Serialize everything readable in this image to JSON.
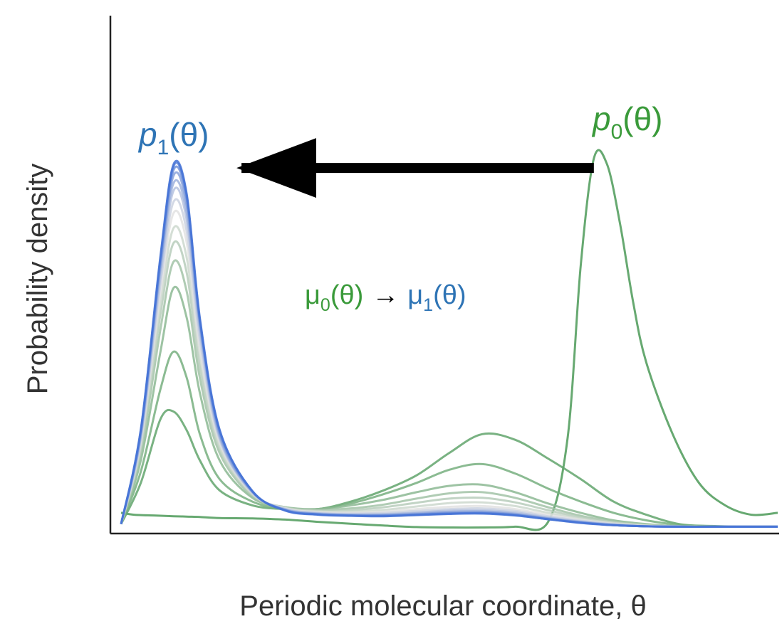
{
  "chart_data": {
    "type": "line",
    "xlabel": "Periodic molecular coordinate, θ",
    "ylabel": "Probability density",
    "xlim": [
      0,
      1
    ],
    "ylim": [
      0,
      1
    ],
    "grid": false,
    "legend": "none",
    "annotations": {
      "p1": {
        "base": "p",
        "sub": "1",
        "tail": "(θ)",
        "color": "#2e74b5"
      },
      "p0": {
        "base": "p",
        "sub": "0",
        "tail": "(θ)",
        "color": "#3a9a3a"
      },
      "mu_left": {
        "base": "μ",
        "sub": "0",
        "tail": "(θ)",
        "color": "#3a9a3a"
      },
      "mu_arrow": "→",
      "mu_right": {
        "base": "μ",
        "sub": "1",
        "tail": "(θ)",
        "color": "#2e74b5"
      }
    },
    "arrow": {
      "from_x": 0.72,
      "to_x": 0.14,
      "y": 0.96
    },
    "colors": {
      "start": "#4c9a58",
      "mid": "#e2e2e2",
      "end": "#4472d6",
      "arrow": "#000000",
      "axis": "#222222"
    },
    "series": [
      {
        "x": [
          0,
          0.02,
          0.05,
          0.08,
          0.1,
          0.12,
          0.15,
          0.2,
          0.25,
          0.3,
          0.35,
          0.4,
          0.45,
          0.5,
          0.55,
          0.6,
          0.65,
          0.68,
          0.7,
          0.72,
          0.74,
          0.76,
          0.78,
          0.8,
          0.84,
          0.88,
          0.92,
          0.96,
          1.0
        ],
        "y": [
          0.04,
          0.035,
          0.033,
          0.031,
          0.03,
          0.029,
          0.026,
          0.025,
          0.022,
          0.016,
          0.011,
          0.006,
          0.002,
          0.001,
          0.001,
          0.003,
          0.015,
          0.24,
          0.7,
          0.985,
          0.97,
          0.81,
          0.6,
          0.44,
          0.25,
          0.12,
          0.06,
          0.035,
          0.04
        ]
      },
      {
        "x": [
          0,
          0.03,
          0.06,
          0.08,
          0.1,
          0.12,
          0.15,
          0.2,
          0.25,
          0.3,
          0.35,
          0.4,
          0.45,
          0.5,
          0.55,
          0.6,
          0.65,
          0.7,
          0.75,
          0.8,
          0.85,
          0.9,
          0.95,
          1.0
        ],
        "y": [
          0.01,
          0.12,
          0.29,
          0.31,
          0.26,
          0.18,
          0.1,
          0.06,
          0.05,
          0.05,
          0.07,
          0.1,
          0.14,
          0.2,
          0.25,
          0.235,
          0.185,
          0.13,
          0.07,
          0.035,
          0.01,
          0.005,
          0.003,
          0.003
        ]
      },
      {
        "x": [
          0,
          0.03,
          0.06,
          0.08,
          0.1,
          0.12,
          0.15,
          0.2,
          0.25,
          0.3,
          0.35,
          0.4,
          0.45,
          0.5,
          0.55,
          0.6,
          0.65,
          0.7,
          0.75,
          0.8,
          0.85,
          0.9,
          0.95,
          1.0
        ],
        "y": [
          0.01,
          0.15,
          0.37,
          0.47,
          0.4,
          0.25,
          0.13,
          0.07,
          0.05,
          0.05,
          0.065,
          0.09,
          0.12,
          0.155,
          0.17,
          0.145,
          0.105,
          0.07,
          0.04,
          0.02,
          0.008,
          0.004,
          0.003,
          0.003
        ]
      },
      {
        "x": [
          0,
          0.03,
          0.06,
          0.08,
          0.1,
          0.12,
          0.15,
          0.2,
          0.25,
          0.3,
          0.35,
          0.4,
          0.45,
          0.5,
          0.55,
          0.6,
          0.65,
          0.7,
          0.75,
          0.8,
          0.85,
          0.9,
          0.95,
          1.0
        ],
        "y": [
          0.01,
          0.18,
          0.47,
          0.64,
          0.56,
          0.36,
          0.18,
          0.08,
          0.055,
          0.05,
          0.06,
          0.075,
          0.095,
          0.112,
          0.115,
          0.095,
          0.065,
          0.04,
          0.02,
          0.01,
          0.004,
          0.003,
          0.003,
          0.003
        ]
      },
      {
        "x": [
          0,
          0.03,
          0.06,
          0.08,
          0.1,
          0.12,
          0.15,
          0.2,
          0.25,
          0.3,
          0.35,
          0.4,
          0.45,
          0.5,
          0.55,
          0.6,
          0.65,
          0.7,
          0.75,
          0.8,
          0.85,
          0.9,
          0.95,
          1.0
        ],
        "y": [
          0.01,
          0.2,
          0.53,
          0.71,
          0.63,
          0.4,
          0.2,
          0.085,
          0.055,
          0.048,
          0.052,
          0.062,
          0.078,
          0.092,
          0.095,
          0.08,
          0.055,
          0.032,
          0.017,
          0.008,
          0.004,
          0.003,
          0.003,
          0.003
        ]
      },
      {
        "x": [
          0,
          0.03,
          0.06,
          0.08,
          0.1,
          0.12,
          0.15,
          0.2,
          0.25,
          0.3,
          0.35,
          0.4,
          0.45,
          0.5,
          0.55,
          0.6,
          0.65,
          0.7,
          0.75,
          0.8,
          0.85,
          0.9,
          0.95,
          1.0
        ],
        "y": [
          0.01,
          0.21,
          0.57,
          0.76,
          0.68,
          0.43,
          0.21,
          0.088,
          0.054,
          0.046,
          0.047,
          0.055,
          0.067,
          0.078,
          0.08,
          0.068,
          0.047,
          0.028,
          0.015,
          0.007,
          0.004,
          0.003,
          0.003,
          0.003
        ]
      },
      {
        "x": [
          0,
          0.03,
          0.06,
          0.08,
          0.1,
          0.12,
          0.15,
          0.2,
          0.25,
          0.3,
          0.35,
          0.4,
          0.45,
          0.5,
          0.55,
          0.6,
          0.65,
          0.7,
          0.75,
          0.8,
          0.85,
          0.9,
          0.95,
          1.0
        ],
        "y": [
          0.01,
          0.22,
          0.6,
          0.8,
          0.72,
          0.46,
          0.22,
          0.09,
          0.053,
          0.044,
          0.043,
          0.048,
          0.057,
          0.066,
          0.068,
          0.058,
          0.04,
          0.024,
          0.013,
          0.006,
          0.004,
          0.003,
          0.003,
          0.003
        ]
      },
      {
        "x": [
          0,
          0.03,
          0.06,
          0.08,
          0.1,
          0.12,
          0.15,
          0.2,
          0.25,
          0.3,
          0.35,
          0.4,
          0.45,
          0.5,
          0.55,
          0.6,
          0.65,
          0.7,
          0.75,
          0.8,
          0.85,
          0.9,
          0.95,
          1.0
        ],
        "y": [
          0.01,
          0.23,
          0.63,
          0.84,
          0.76,
          0.48,
          0.23,
          0.092,
          0.052,
          0.042,
          0.04,
          0.043,
          0.05,
          0.056,
          0.058,
          0.05,
          0.035,
          0.021,
          0.011,
          0.005,
          0.003,
          0.003,
          0.003,
          0.003
        ]
      },
      {
        "x": [
          0,
          0.03,
          0.06,
          0.08,
          0.1,
          0.12,
          0.15,
          0.2,
          0.25,
          0.3,
          0.35,
          0.4,
          0.45,
          0.5,
          0.55,
          0.6,
          0.65,
          0.7,
          0.75,
          0.8,
          0.85,
          0.9,
          0.95,
          1.0
        ],
        "y": [
          0.01,
          0.235,
          0.65,
          0.87,
          0.79,
          0.5,
          0.235,
          0.093,
          0.051,
          0.04,
          0.038,
          0.04,
          0.045,
          0.05,
          0.052,
          0.045,
          0.031,
          0.019,
          0.01,
          0.005,
          0.003,
          0.003,
          0.003,
          0.003
        ]
      },
      {
        "x": [
          0,
          0.03,
          0.06,
          0.08,
          0.1,
          0.12,
          0.15,
          0.2,
          0.25,
          0.3,
          0.35,
          0.4,
          0.45,
          0.5,
          0.55,
          0.6,
          0.65,
          0.7,
          0.75,
          0.8,
          0.85,
          0.9,
          0.95,
          1.0
        ],
        "y": [
          0.01,
          0.24,
          0.67,
          0.9,
          0.82,
          0.52,
          0.24,
          0.094,
          0.05,
          0.039,
          0.036,
          0.037,
          0.041,
          0.046,
          0.047,
          0.041,
          0.028,
          0.017,
          0.009,
          0.004,
          0.003,
          0.003,
          0.003,
          0.003
        ]
      },
      {
        "x": [
          0,
          0.03,
          0.06,
          0.08,
          0.1,
          0.12,
          0.15,
          0.2,
          0.25,
          0.3,
          0.35,
          0.4,
          0.45,
          0.5,
          0.55,
          0.6,
          0.65,
          0.7,
          0.75,
          0.8,
          0.85,
          0.9,
          0.95,
          1.0
        ],
        "y": [
          0.01,
          0.245,
          0.69,
          0.92,
          0.84,
          0.535,
          0.245,
          0.095,
          0.049,
          0.038,
          0.035,
          0.035,
          0.039,
          0.043,
          0.044,
          0.038,
          0.026,
          0.016,
          0.008,
          0.004,
          0.003,
          0.003,
          0.003,
          0.003
        ]
      },
      {
        "x": [
          0,
          0.03,
          0.06,
          0.08,
          0.1,
          0.12,
          0.15,
          0.2,
          0.25,
          0.3,
          0.35,
          0.4,
          0.45,
          0.5,
          0.55,
          0.6,
          0.65,
          0.7,
          0.75,
          0.8,
          0.85,
          0.9,
          0.95,
          1.0
        ],
        "y": [
          0.01,
          0.25,
          0.7,
          0.94,
          0.86,
          0.545,
          0.25,
          0.096,
          0.048,
          0.037,
          0.034,
          0.034,
          0.037,
          0.041,
          0.042,
          0.036,
          0.025,
          0.015,
          0.008,
          0.004,
          0.003,
          0.003,
          0.003,
          0.003
        ]
      },
      {
        "x": [
          0,
          0.03,
          0.06,
          0.08,
          0.1,
          0.12,
          0.15,
          0.2,
          0.25,
          0.3,
          0.35,
          0.4,
          0.45,
          0.5,
          0.55,
          0.6,
          0.65,
          0.7,
          0.75,
          0.8,
          0.85,
          0.9,
          0.95,
          1.0
        ],
        "y": [
          0.01,
          0.255,
          0.71,
          0.955,
          0.875,
          0.55,
          0.255,
          0.097,
          0.047,
          0.036,
          0.033,
          0.033,
          0.036,
          0.039,
          0.04,
          0.035,
          0.024,
          0.014,
          0.007,
          0.004,
          0.003,
          0.003,
          0.003,
          0.003
        ]
      },
      {
        "x": [
          0,
          0.03,
          0.06,
          0.08,
          0.1,
          0.12,
          0.15,
          0.2,
          0.25,
          0.3,
          0.35,
          0.4,
          0.45,
          0.5,
          0.55,
          0.6,
          0.65,
          0.7,
          0.75,
          0.8,
          0.85,
          0.9,
          0.95,
          1.0
        ],
        "y": [
          0.01,
          0.26,
          0.72,
          0.965,
          0.885,
          0.555,
          0.26,
          0.098,
          0.047,
          0.036,
          0.033,
          0.032,
          0.035,
          0.038,
          0.039,
          0.034,
          0.023,
          0.014,
          0.007,
          0.004,
          0.003,
          0.003,
          0.003,
          0.003
        ]
      },
      {
        "x": [
          0,
          0.03,
          0.06,
          0.08,
          0.1,
          0.12,
          0.15,
          0.2,
          0.25,
          0.3,
          0.35,
          0.4,
          0.45,
          0.5,
          0.55,
          0.6,
          0.65,
          0.7,
          0.75,
          0.8,
          0.85,
          0.9,
          0.95,
          1.0
        ],
        "y": [
          0.01,
          0.262,
          0.725,
          0.97,
          0.89,
          0.56,
          0.262,
          0.098,
          0.046,
          0.035,
          0.032,
          0.031,
          0.034,
          0.037,
          0.038,
          0.033,
          0.023,
          0.013,
          0.007,
          0.004,
          0.003,
          0.003,
          0.003,
          0.003
        ]
      }
    ]
  }
}
